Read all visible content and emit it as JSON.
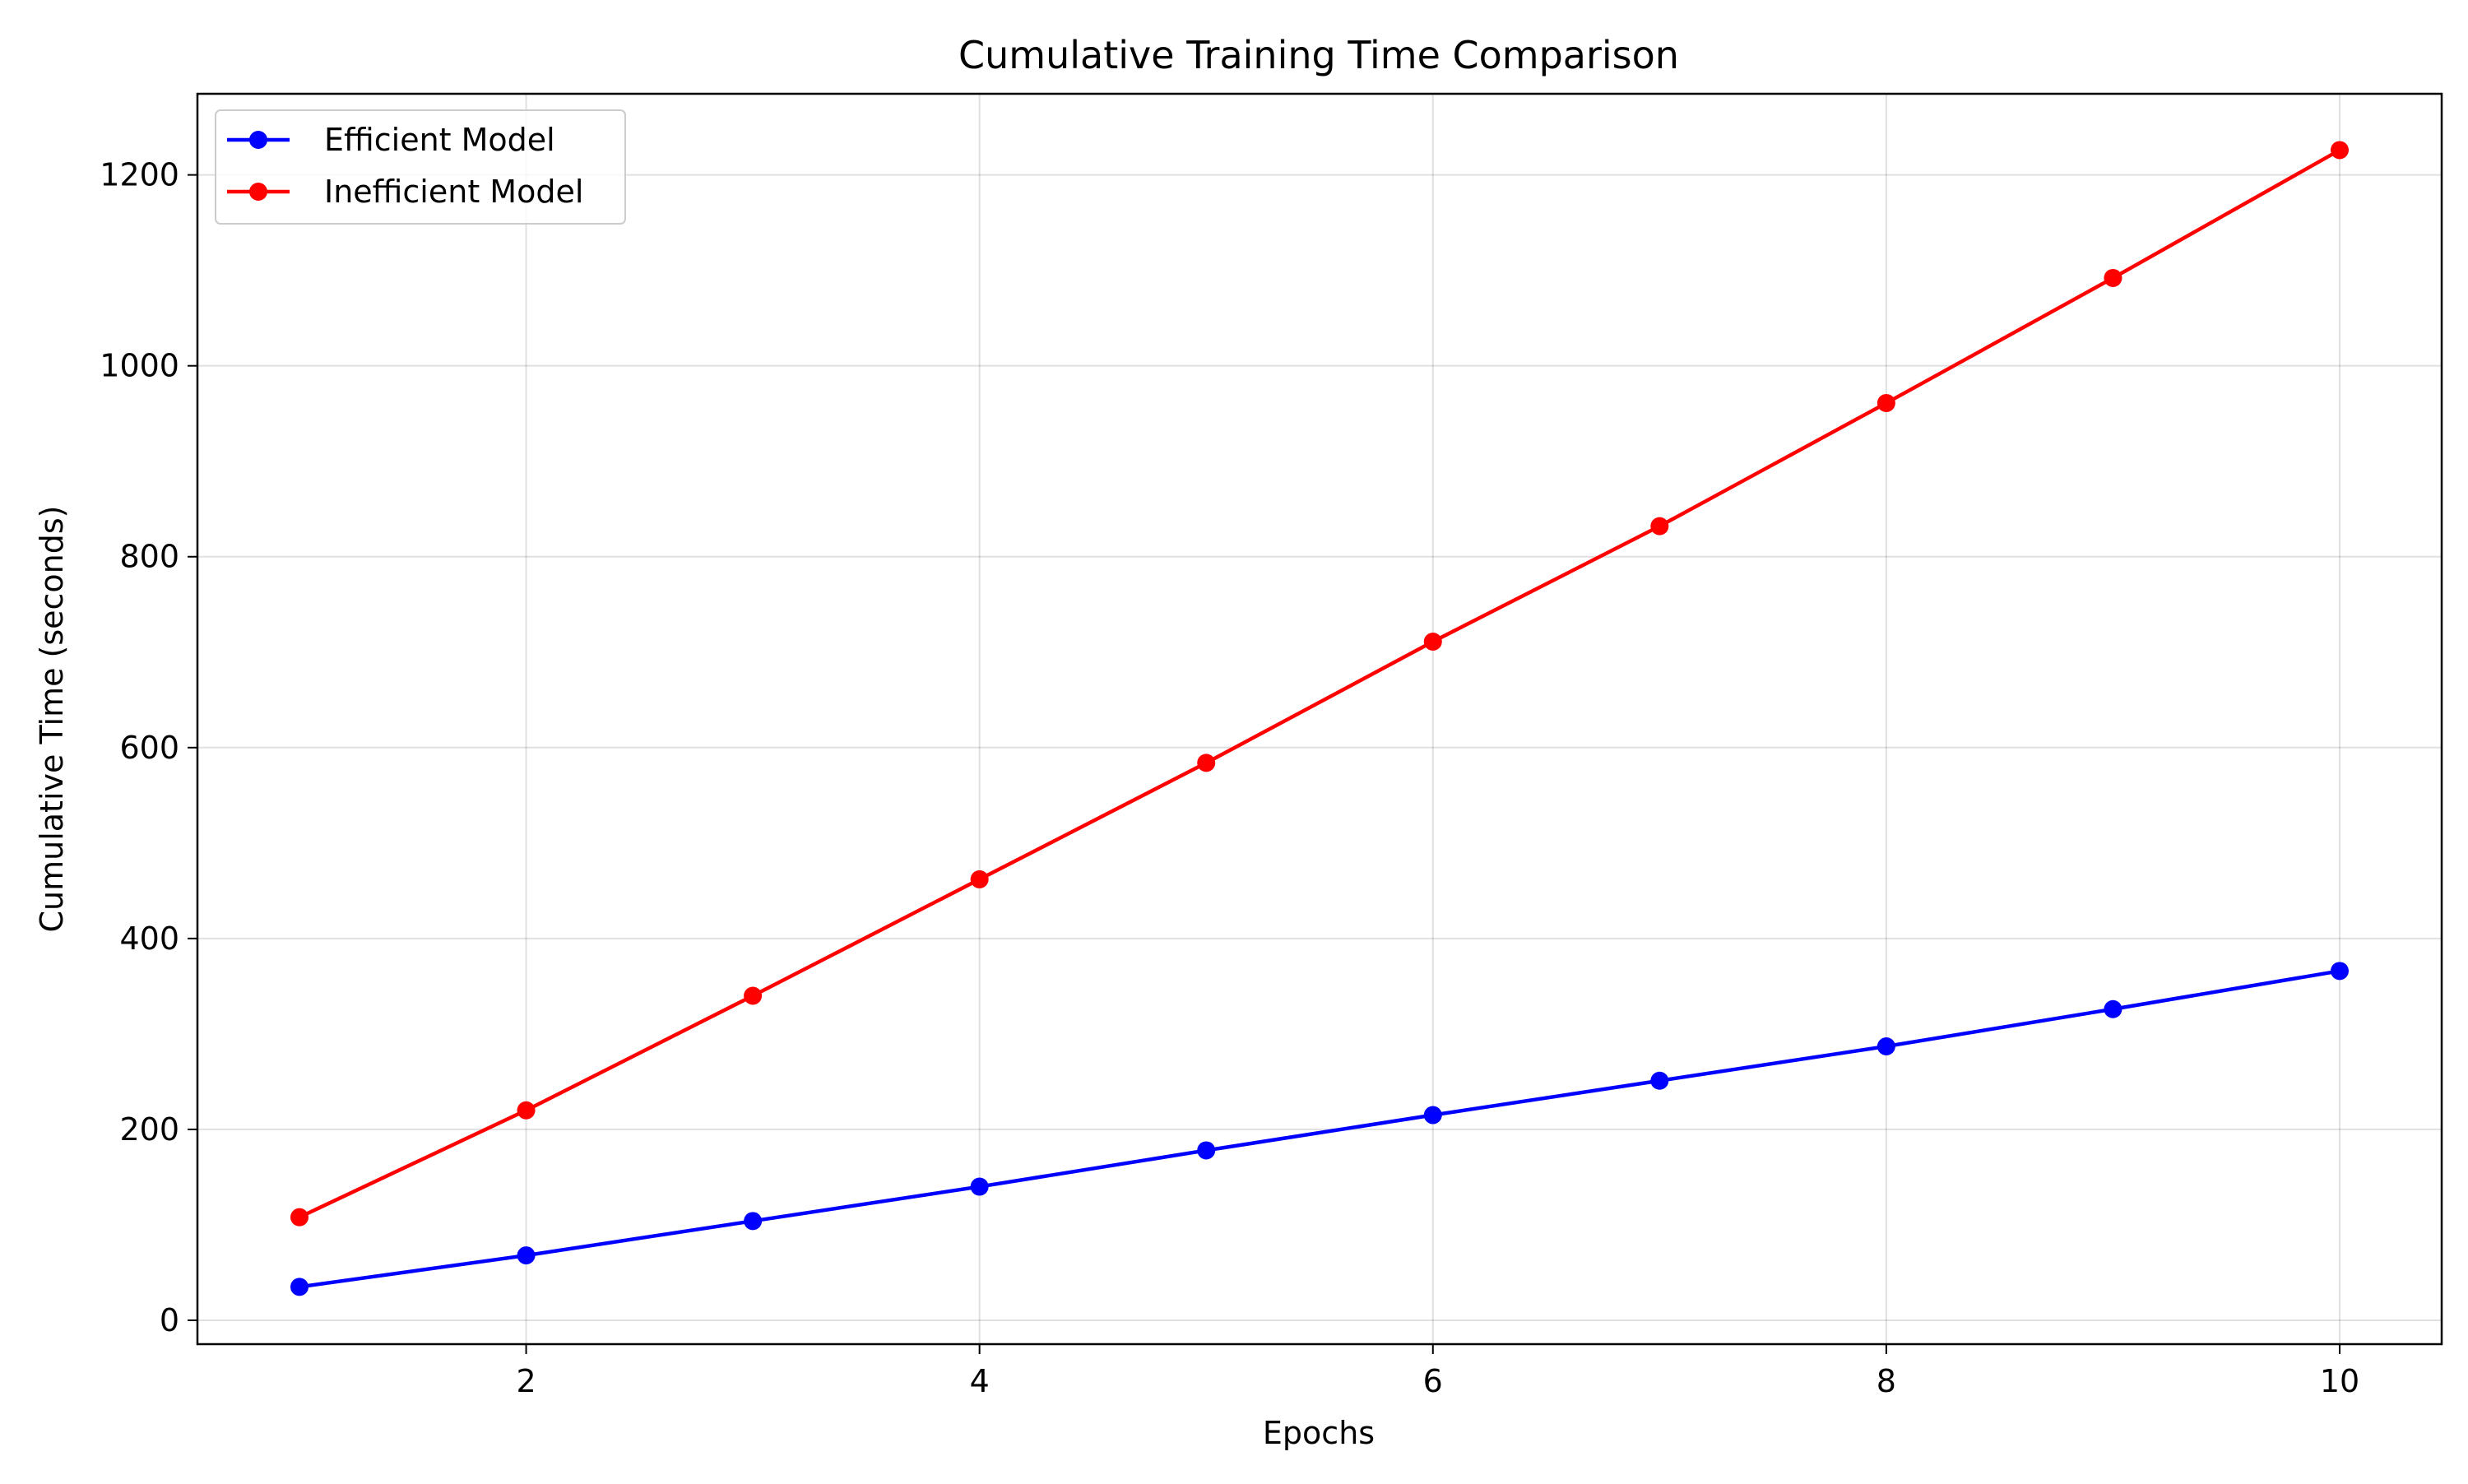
{
  "chart_data": {
    "type": "line",
    "title": "Cumulative Training Time Comparison",
    "xlabel": "Epochs",
    "ylabel": "Cumulative Time (seconds)",
    "x": [
      1,
      2,
      3,
      4,
      5,
      6,
      7,
      8,
      9,
      10
    ],
    "xlim": [
      0.55,
      10.45
    ],
    "ylim": [
      -25,
      1285
    ],
    "xticks": [
      2,
      4,
      6,
      8,
      10
    ],
    "yticks": [
      0,
      200,
      400,
      600,
      800,
      1000,
      1200
    ],
    "grid": true,
    "legend_position": "top-left",
    "series": [
      {
        "name": "Efficient Model",
        "color": "#0000ff",
        "marker": "circle",
        "values": [
          35,
          68,
          104,
          140,
          178,
          215,
          251,
          287,
          326,
          366
        ]
      },
      {
        "name": "Inefficient Model",
        "color": "#ff0000",
        "marker": "circle",
        "values": [
          108,
          220,
          340,
          462,
          584,
          711,
          832,
          961,
          1092,
          1226
        ]
      }
    ]
  }
}
